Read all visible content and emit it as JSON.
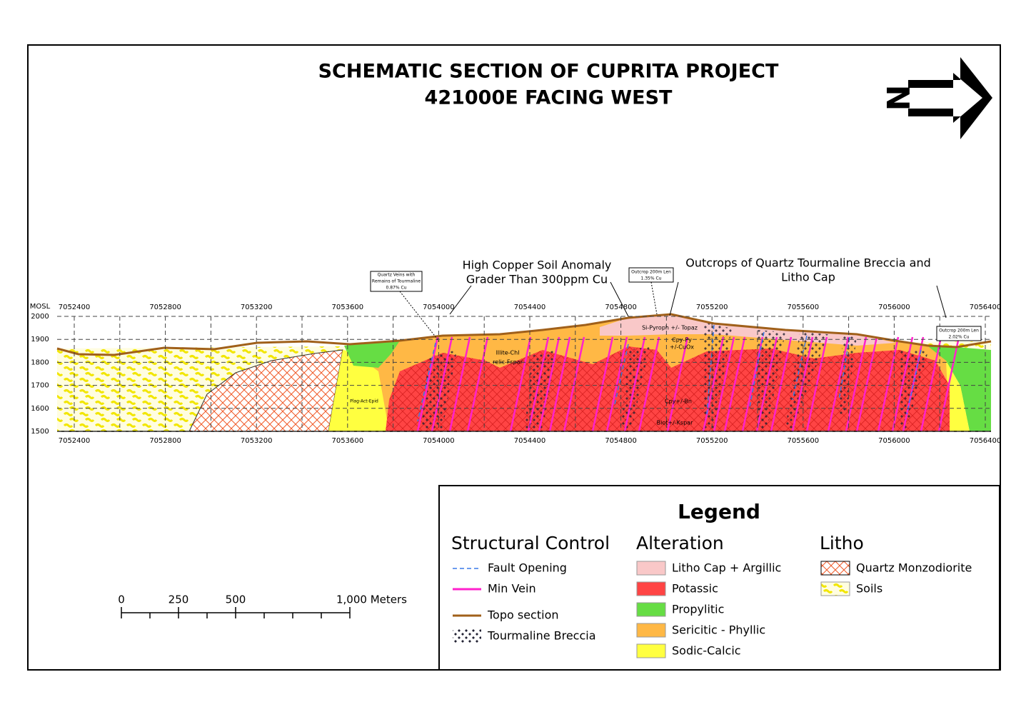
{
  "header": {
    "title_lines": [
      "SCHEMATIC SECTION OF CUPRITA PROJECT",
      "421000E FACING WEST"
    ]
  },
  "north_arrow": {
    "label": "N"
  },
  "section": {
    "elevation_label": "MOSL",
    "elevations": [
      2000,
      1900,
      1800,
      1700,
      1600,
      1500
    ],
    "eastings": [
      7052400,
      7052800,
      7053200,
      7053600,
      7054000,
      7054400,
      7054800,
      7055200,
      7055600,
      7056000,
      7056400
    ],
    "zone_labels": [
      "Si-Pyroph +/- Topaz",
      "Cpy-Py",
      "+/-CuOx",
      "Illite-Chl",
      "relic-Fspar",
      "Cpy+/-Bn",
      "Biot+/-Kspar",
      "Plag-Act-Epid"
    ],
    "callouts": [
      {
        "lines": [
          "High Copper Soil Anomaly",
          "Grader Than 300ppm Cu"
        ]
      },
      {
        "lines": [
          "Outcrops of Quartz Tourmaline Breccia and",
          "Litho Cap"
        ]
      }
    ],
    "boxes": [
      {
        "lines": [
          "Quartz Veins with",
          "Remains of Tourmaline",
          "0.87% Cu"
        ]
      },
      {
        "lines": [
          "Outcrop 200m Len",
          "1.35% Cu"
        ]
      },
      {
        "lines": [
          "Outcrop 200m Len",
          "2.02% Cu"
        ]
      }
    ]
  },
  "scale_bar": {
    "labels": [
      "0",
      "250",
      "500",
      "1,000 Meters"
    ]
  },
  "legend": {
    "title": "Legend",
    "structural": {
      "heading": "Structural Control",
      "items": [
        "Fault Opening",
        "Min Vein",
        "Topo section",
        "Tourmaline Breccia"
      ]
    },
    "alteration": {
      "heading": "Alteration",
      "items": [
        "Litho Cap + Argillic",
        "Potassic",
        "Propylitic",
        "Sericitic - Phyllic",
        "Sodic-Calcic"
      ]
    },
    "litho": {
      "heading": "Litho",
      "items": [
        "Quartz Monzodiorite",
        "Soils"
      ]
    }
  }
}
